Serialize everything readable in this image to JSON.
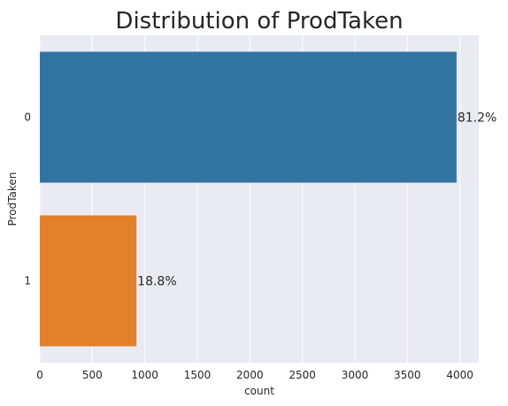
{
  "chart_data": {
    "type": "bar",
    "orientation": "horizontal",
    "title": "Distribution of ProdTaken",
    "xlabel": "count",
    "ylabel": "ProdTaken",
    "categories": [
      "0",
      "1"
    ],
    "values": [
      3968,
      920
    ],
    "data_labels": [
      "81.2%",
      "18.8%"
    ],
    "colors": [
      "#3274a1",
      "#e1812c"
    ],
    "xlim": [
      0,
      4180
    ],
    "xticks": [
      0,
      500,
      1000,
      1500,
      2000,
      2500,
      3000,
      3500,
      4000
    ],
    "grid": true,
    "plot_background": "#eaeaf2",
    "grid_color": "#ffffff"
  }
}
